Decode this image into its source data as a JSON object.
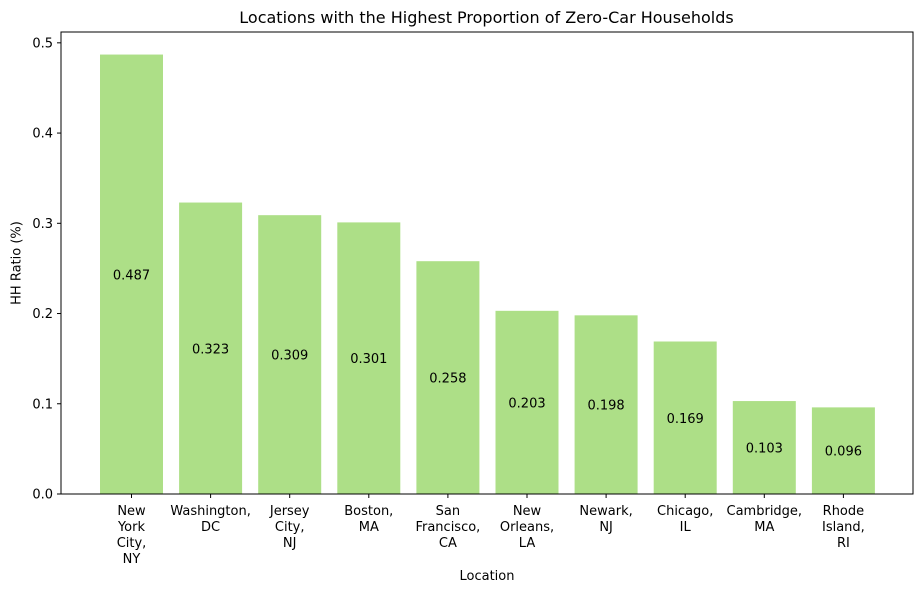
{
  "chart_data": {
    "type": "bar",
    "title": "Locations with the Highest Proportion of Zero-Car Households",
    "xlabel": "Location",
    "ylabel": "HH Ratio (%)",
    "ylim": [
      0,
      0.512
    ],
    "yticks": [
      "0.0",
      "0.1",
      "0.2",
      "0.3",
      "0.4",
      "0.5"
    ],
    "categories": [
      "New York City, NY",
      "Washington, DC",
      "Jersey City, NJ",
      "Boston, MA",
      "San Francisco, CA",
      "New Orleans, LA",
      "Newark, NJ",
      "Chicago, IL",
      "Cambridge, MA",
      "Rhode Island, RI"
    ],
    "category_lines": [
      [
        "New",
        "York",
        "City,",
        "NY"
      ],
      [
        "Washington,",
        "DC"
      ],
      [
        "Jersey",
        "City,",
        "NJ"
      ],
      [
        "Boston,",
        "MA"
      ],
      [
        "San",
        "Francisco,",
        "CA"
      ],
      [
        "New",
        "Orleans,",
        "LA"
      ],
      [
        "Newark,",
        "NJ"
      ],
      [
        "Chicago,",
        "IL"
      ],
      [
        "Cambridge,",
        "MA"
      ],
      [
        "Rhode",
        "Island,",
        "RI"
      ]
    ],
    "values": [
      0.487,
      0.323,
      0.309,
      0.301,
      0.258,
      0.203,
      0.198,
      0.169,
      0.103,
      0.096
    ],
    "value_labels": [
      "0.487",
      "0.323",
      "0.309",
      "0.301",
      "0.258",
      "0.203",
      "0.198",
      "0.169",
      "0.103",
      "0.096"
    ],
    "bar_color": "#addf87",
    "grid": false,
    "legend": "none"
  }
}
